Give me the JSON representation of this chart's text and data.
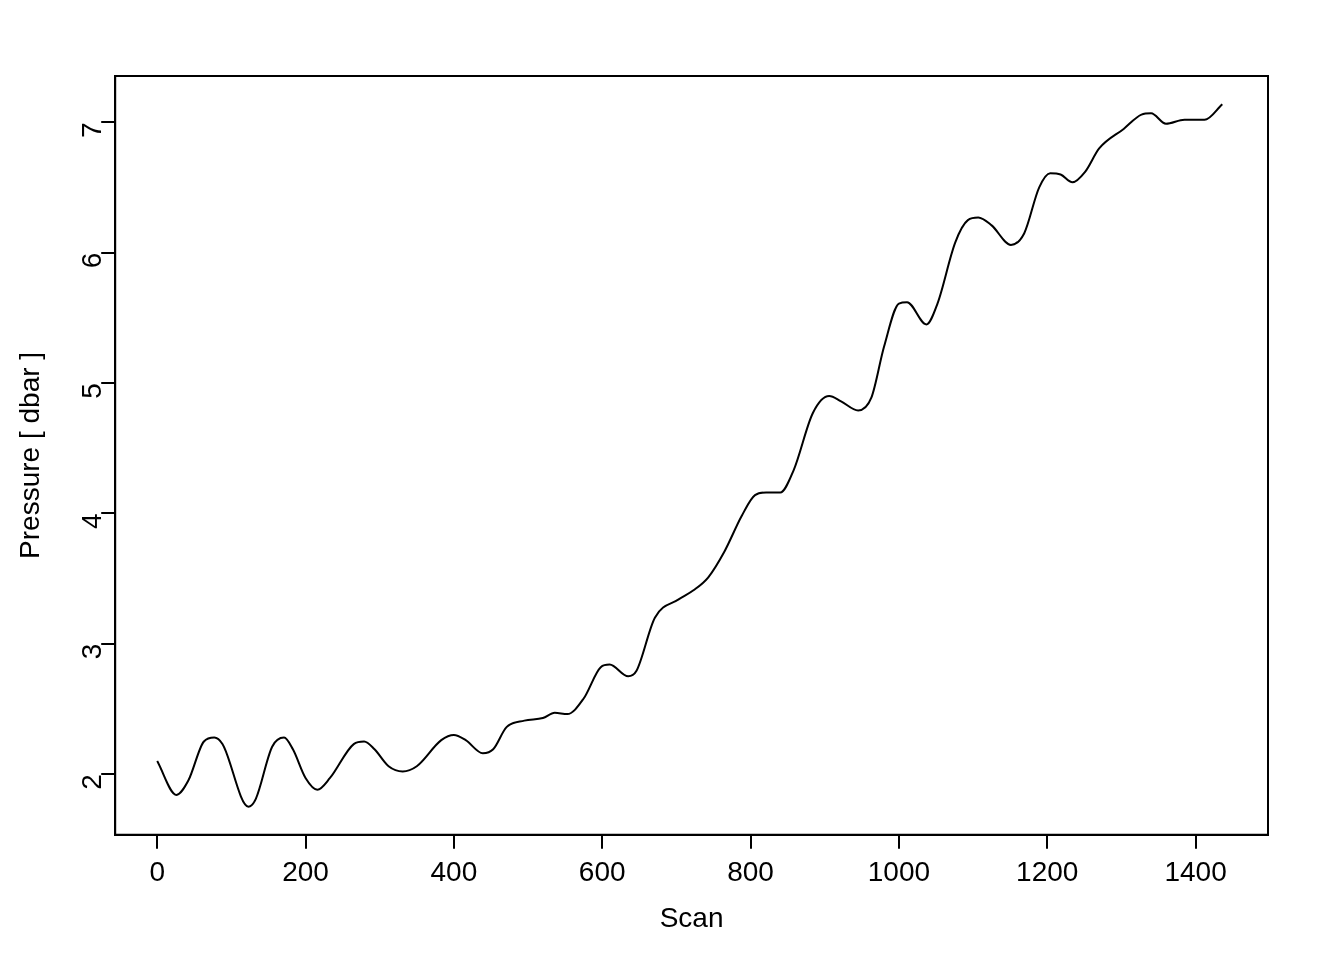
{
  "chart_data": {
    "type": "line",
    "xlabel": "Scan",
    "ylabel": "Pressure [ dbar ]",
    "color": "#000000",
    "x": [
      0,
      26,
      42,
      63,
      77,
      88,
      123,
      133,
      155,
      171,
      183,
      200,
      216,
      233,
      265,
      279,
      293,
      312,
      331,
      350,
      383,
      400,
      416,
      439,
      453,
      471,
      495,
      520,
      536,
      553,
      575,
      598,
      610,
      635,
      646,
      671,
      703,
      723,
      743,
      765,
      788,
      806,
      821,
      840,
      858,
      884,
      906,
      922,
      945,
      963,
      980,
      1000,
      1011,
      1037,
      1052,
      1076,
      1093,
      1107,
      1125,
      1151,
      1169,
      1189,
      1204,
      1218,
      1234,
      1251,
      1270,
      1303,
      1327,
      1340,
      1360,
      1385,
      1412,
      1436
    ],
    "values": [
      2.1,
      1.84,
      1.95,
      2.25,
      2.28,
      2.23,
      1.75,
      1.81,
      2.21,
      2.28,
      2.19,
      1.97,
      1.88,
      1.97,
      2.23,
      2.25,
      2.19,
      2.06,
      2.02,
      2.06,
      2.26,
      2.3,
      2.26,
      2.16,
      2.19,
      2.36,
      2.41,
      2.43,
      2.47,
      2.46,
      2.58,
      2.82,
      2.84,
      2.75,
      2.79,
      3.2,
      3.34,
      3.41,
      3.51,
      3.71,
      3.98,
      4.14,
      4.16,
      4.16,
      4.33,
      4.77,
      4.9,
      4.86,
      4.79,
      4.89,
      5.28,
      5.61,
      5.62,
      5.45,
      5.61,
      6.08,
      6.25,
      6.27,
      6.21,
      6.06,
      6.15,
      6.5,
      6.61,
      6.6,
      6.54,
      6.62,
      6.8,
      6.95,
      7.06,
      7.07,
      6.99,
      7.02,
      7.02,
      7.14
    ],
    "xlim": [
      -56.6,
      1497.6
    ],
    "ylim": [
      1.534,
      7.356
    ],
    "xticks": [
      0,
      200,
      400,
      600,
      800,
      1000,
      1200,
      1400
    ],
    "yticks": [
      2,
      3,
      4,
      5,
      6,
      7
    ]
  }
}
